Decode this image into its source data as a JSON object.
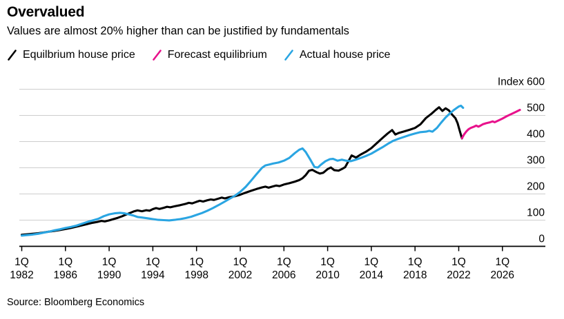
{
  "header": {
    "title": "Overvalued",
    "subtitle": "Values are almost 20% higher than can be justified by fundamentals"
  },
  "source": "Source: Bloomberg Economics",
  "colors": {
    "equilibrium": "#000000",
    "forecast": "#e8128c",
    "actual": "#2aa5e2",
    "grid": "#cdcdcd",
    "axis": "#000000"
  },
  "legend": [
    {
      "id": "equilibrium",
      "label": "Equilbrium house price",
      "color": "#000000"
    },
    {
      "id": "forecast",
      "label": "Forecast equilibrium",
      "color": "#e8128c"
    },
    {
      "id": "actual",
      "label": "Actual house price",
      "color": "#2aa5e2"
    }
  ],
  "chart_data": {
    "type": "line",
    "title": "Overvalued",
    "subtitle": "Values are almost 20% higher than can be justified by fundamentals",
    "ylabel": "Index",
    "ylim": [
      0,
      600
    ],
    "xlim": [
      1982,
      2028
    ],
    "grid": "horizontal",
    "legend_position": "top",
    "y_ticks": [
      {
        "label": "Index 600",
        "value": 600
      },
      {
        "label": "500",
        "value": 500
      },
      {
        "label": "400",
        "value": 400
      },
      {
        "label": "300",
        "value": 300
      },
      {
        "label": "200",
        "value": 200
      },
      {
        "label": "100",
        "value": 100
      },
      {
        "label": "0",
        "value": 0
      }
    ],
    "x_ticks": [
      {
        "line1": "1Q",
        "line2": "1982",
        "value": 1982
      },
      {
        "line1": "1Q",
        "line2": "1986",
        "value": 1986
      },
      {
        "line1": "1Q",
        "line2": "1990",
        "value": 1990
      },
      {
        "line1": "1Q",
        "line2": "1994",
        "value": 1994
      },
      {
        "line1": "1Q",
        "line2": "1998",
        "value": 1998
      },
      {
        "line1": "1Q",
        "line2": "2002",
        "value": 2002
      },
      {
        "line1": "1Q",
        "line2": "2006",
        "value": 2006
      },
      {
        "line1": "1Q",
        "line2": "2010",
        "value": 2010
      },
      {
        "line1": "1Q",
        "line2": "2014",
        "value": 2014
      },
      {
        "line1": "1Q",
        "line2": "2018",
        "value": 2018
      },
      {
        "line1": "1Q",
        "line2": "2022",
        "value": 2022
      },
      {
        "line1": "1Q",
        "line2": "2026",
        "value": 2026
      }
    ],
    "series": [
      {
        "name": "Equilbrium house price",
        "id": "equilibrium",
        "color": "#000000",
        "points": [
          [
            1982.0,
            44
          ],
          [
            1982.5,
            46
          ],
          [
            1983.0,
            48
          ],
          [
            1983.5,
            50
          ],
          [
            1984.0,
            53
          ],
          [
            1984.5,
            56
          ],
          [
            1985.0,
            59
          ],
          [
            1985.5,
            62
          ],
          [
            1986.0,
            66
          ],
          [
            1986.5,
            70
          ],
          [
            1987.0,
            75
          ],
          [
            1987.5,
            80
          ],
          [
            1988.0,
            85
          ],
          [
            1988.5,
            90
          ],
          [
            1989.0,
            94
          ],
          [
            1989.3,
            97
          ],
          [
            1989.6,
            95
          ],
          [
            1990.0,
            99
          ],
          [
            1990.4,
            104
          ],
          [
            1990.8,
            109
          ],
          [
            1991.2,
            115
          ],
          [
            1991.6,
            122
          ],
          [
            1992.0,
            129
          ],
          [
            1992.3,
            134
          ],
          [
            1992.6,
            137
          ],
          [
            1993.0,
            134
          ],
          [
            1993.4,
            138
          ],
          [
            1993.7,
            136
          ],
          [
            1994.0,
            142
          ],
          [
            1994.3,
            146
          ],
          [
            1994.6,
            143
          ],
          [
            1995.0,
            147
          ],
          [
            1995.3,
            151
          ],
          [
            1995.6,
            149
          ],
          [
            1996.0,
            153
          ],
          [
            1996.5,
            157
          ],
          [
            1997.0,
            162
          ],
          [
            1997.3,
            166
          ],
          [
            1997.6,
            164
          ],
          [
            1998.0,
            170
          ],
          [
            1998.3,
            174
          ],
          [
            1998.6,
            171
          ],
          [
            1999.0,
            176
          ],
          [
            1999.3,
            179
          ],
          [
            1999.6,
            177
          ],
          [
            2000.0,
            182
          ],
          [
            2000.3,
            186
          ],
          [
            2000.6,
            183
          ],
          [
            2001.0,
            188
          ],
          [
            2001.5,
            191
          ],
          [
            2002.0,
            197
          ],
          [
            2002.5,
            205
          ],
          [
            2003.0,
            212
          ],
          [
            2003.5,
            219
          ],
          [
            2004.0,
            225
          ],
          [
            2004.3,
            228
          ],
          [
            2004.6,
            224
          ],
          [
            2005.0,
            229
          ],
          [
            2005.3,
            232
          ],
          [
            2005.6,
            230
          ],
          [
            2006.0,
            236
          ],
          [
            2006.5,
            241
          ],
          [
            2007.0,
            247
          ],
          [
            2007.4,
            253
          ],
          [
            2007.7,
            260
          ],
          [
            2008.0,
            272
          ],
          [
            2008.3,
            289
          ],
          [
            2008.6,
            292
          ],
          [
            2009.0,
            283
          ],
          [
            2009.3,
            278
          ],
          [
            2009.6,
            281
          ],
          [
            2010.0,
            295
          ],
          [
            2010.3,
            301
          ],
          [
            2010.6,
            291
          ],
          [
            2011.0,
            289
          ],
          [
            2011.3,
            295
          ],
          [
            2011.6,
            302
          ],
          [
            2011.9,
            325
          ],
          [
            2012.2,
            347
          ],
          [
            2012.6,
            339
          ],
          [
            2013.0,
            350
          ],
          [
            2013.5,
            361
          ],
          [
            2014.0,
            375
          ],
          [
            2014.5,
            394
          ],
          [
            2015.0,
            413
          ],
          [
            2015.5,
            431
          ],
          [
            2015.9,
            444
          ],
          [
            2016.2,
            427
          ],
          [
            2016.5,
            433
          ],
          [
            2017.0,
            439
          ],
          [
            2017.5,
            445
          ],
          [
            2018.0,
            452
          ],
          [
            2018.5,
            466
          ],
          [
            2019.0,
            490
          ],
          [
            2019.5,
            506
          ],
          [
            2019.9,
            521
          ],
          [
            2020.2,
            531
          ],
          [
            2020.5,
            517
          ],
          [
            2020.8,
            527
          ],
          [
            2021.1,
            519
          ],
          [
            2021.4,
            503
          ],
          [
            2021.7,
            489
          ],
          [
            2021.9,
            470
          ],
          [
            2022.1,
            440
          ],
          [
            2022.3,
            412
          ]
        ]
      },
      {
        "name": "Forecast equilibrium",
        "id": "forecast",
        "color": "#e8128c",
        "points": [
          [
            2022.3,
            413
          ],
          [
            2022.5,
            428
          ],
          [
            2022.7,
            439
          ],
          [
            2022.9,
            447
          ],
          [
            2023.1,
            452
          ],
          [
            2023.4,
            457
          ],
          [
            2023.6,
            461
          ],
          [
            2023.8,
            457
          ],
          [
            2024.0,
            461
          ],
          [
            2024.2,
            466
          ],
          [
            2024.5,
            470
          ],
          [
            2024.8,
            473
          ],
          [
            2025.1,
            477
          ],
          [
            2025.3,
            474
          ],
          [
            2025.6,
            480
          ],
          [
            2026.0,
            488
          ],
          [
            2026.4,
            497
          ],
          [
            2026.8,
            505
          ],
          [
            2027.2,
            513
          ],
          [
            2027.6,
            521
          ]
        ]
      },
      {
        "name": "Actual house price",
        "id": "actual",
        "color": "#2aa5e2",
        "points": [
          [
            1982.0,
            41
          ],
          [
            1982.5,
            43
          ],
          [
            1983.0,
            45
          ],
          [
            1983.5,
            48
          ],
          [
            1984.0,
            52
          ],
          [
            1984.5,
            56
          ],
          [
            1985.0,
            61
          ],
          [
            1985.5,
            65
          ],
          [
            1986.0,
            70
          ],
          [
            1986.5,
            74
          ],
          [
            1987.0,
            79
          ],
          [
            1987.5,
            86
          ],
          [
            1988.0,
            93
          ],
          [
            1988.5,
            99
          ],
          [
            1989.0,
            105
          ],
          [
            1989.5,
            115
          ],
          [
            1990.0,
            122
          ],
          [
            1990.5,
            126
          ],
          [
            1991.0,
            128
          ],
          [
            1991.4,
            126
          ],
          [
            1991.8,
            122
          ],
          [
            1992.2,
            118
          ],
          [
            1992.6,
            112
          ],
          [
            1993.0,
            110
          ],
          [
            1993.5,
            107
          ],
          [
            1994.0,
            104
          ],
          [
            1994.5,
            101
          ],
          [
            1995.0,
            100
          ],
          [
            1995.5,
            99
          ],
          [
            1996.0,
            101
          ],
          [
            1996.5,
            104
          ],
          [
            1997.0,
            108
          ],
          [
            1997.5,
            113
          ],
          [
            1998.0,
            120
          ],
          [
            1998.5,
            127
          ],
          [
            1999.0,
            136
          ],
          [
            1999.5,
            146
          ],
          [
            2000.0,
            157
          ],
          [
            2000.5,
            169
          ],
          [
            2001.0,
            181
          ],
          [
            2001.5,
            193
          ],
          [
            2002.0,
            208
          ],
          [
            2002.5,
            227
          ],
          [
            2003.0,
            251
          ],
          [
            2003.5,
            276
          ],
          [
            2004.0,
            300
          ],
          [
            2004.3,
            309
          ],
          [
            2004.7,
            313
          ],
          [
            2005.0,
            316
          ],
          [
            2005.5,
            320
          ],
          [
            2006.0,
            327
          ],
          [
            2006.5,
            338
          ],
          [
            2007.0,
            356
          ],
          [
            2007.4,
            369
          ],
          [
            2007.7,
            374
          ],
          [
            2008.0,
            360
          ],
          [
            2008.4,
            332
          ],
          [
            2008.8,
            303
          ],
          [
            2009.1,
            301
          ],
          [
            2009.4,
            312
          ],
          [
            2009.8,
            325
          ],
          [
            2010.2,
            333
          ],
          [
            2010.5,
            334
          ],
          [
            2010.9,
            327
          ],
          [
            2011.3,
            331
          ],
          [
            2011.7,
            327
          ],
          [
            2012.1,
            325
          ],
          [
            2012.5,
            330
          ],
          [
            2013.0,
            337
          ],
          [
            2013.5,
            345
          ],
          [
            2014.0,
            354
          ],
          [
            2014.5,
            366
          ],
          [
            2015.0,
            378
          ],
          [
            2015.5,
            391
          ],
          [
            2016.0,
            403
          ],
          [
            2016.5,
            411
          ],
          [
            2017.0,
            418
          ],
          [
            2017.5,
            425
          ],
          [
            2018.0,
            431
          ],
          [
            2018.5,
            436
          ],
          [
            2019.0,
            438
          ],
          [
            2019.3,
            441
          ],
          [
            2019.6,
            438
          ],
          [
            2020.0,
            452
          ],
          [
            2020.4,
            473
          ],
          [
            2020.8,
            492
          ],
          [
            2021.2,
            508
          ],
          [
            2021.6,
            522
          ],
          [
            2022.0,
            534
          ],
          [
            2022.2,
            537
          ],
          [
            2022.4,
            529
          ]
        ]
      }
    ]
  }
}
